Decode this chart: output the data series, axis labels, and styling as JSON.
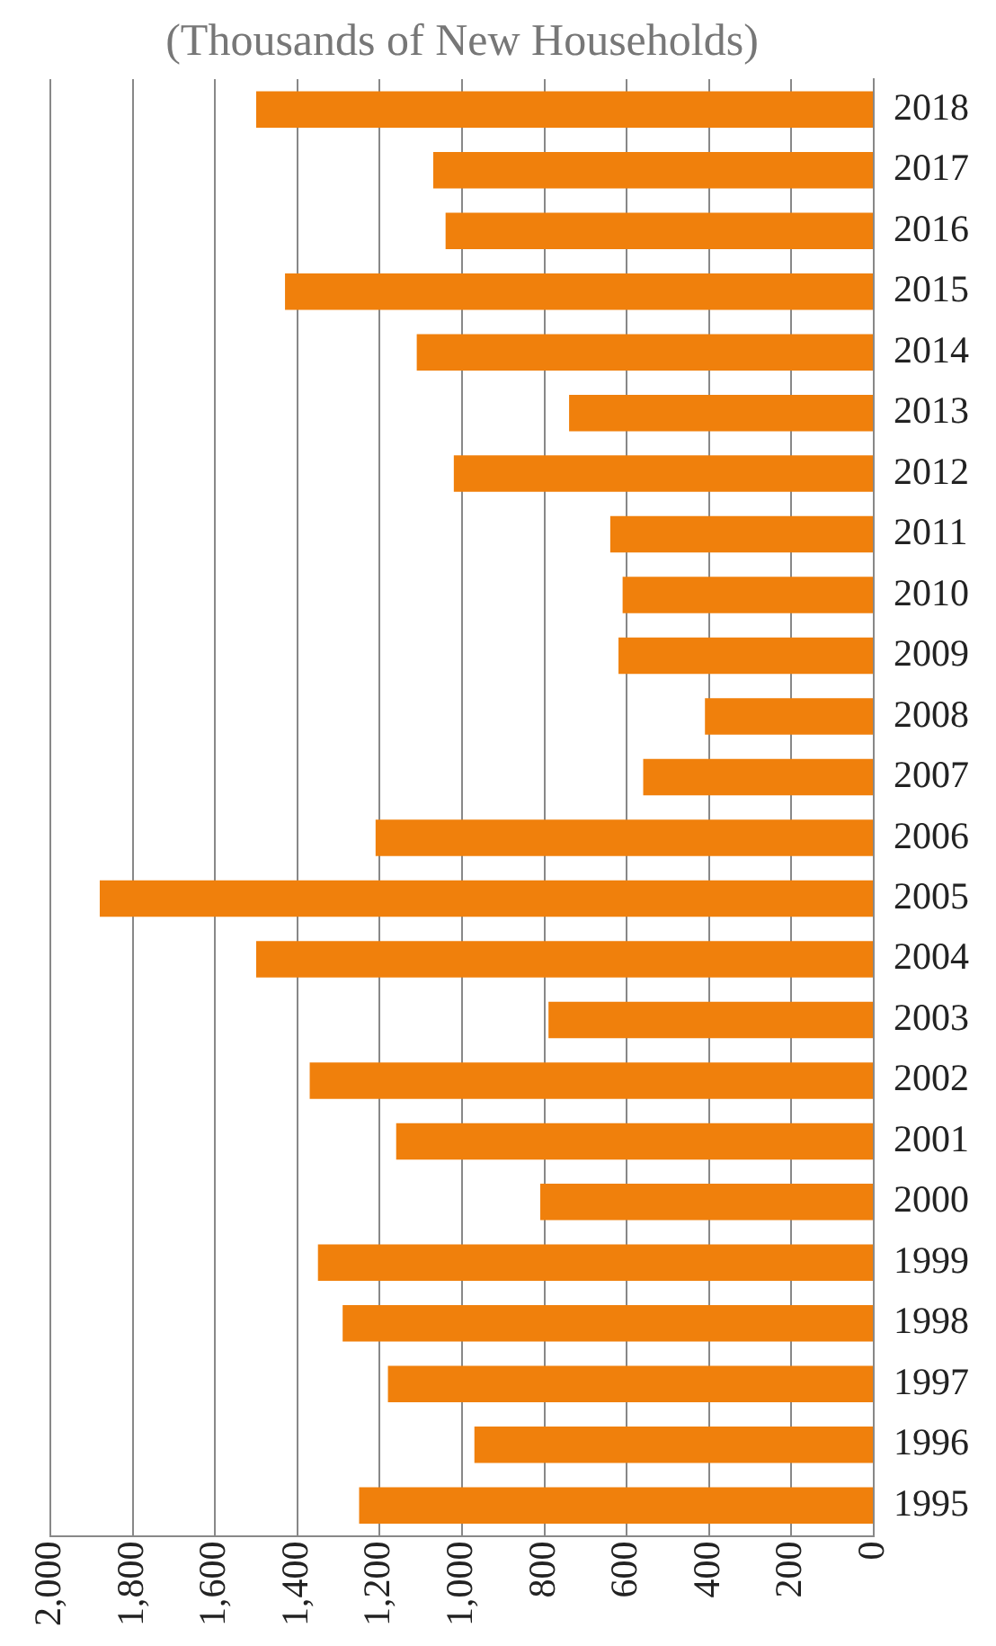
{
  "chart_data": {
    "type": "bar",
    "orientation": "horizontal",
    "xlabel": "(Thousands of New Households)",
    "categories": [
      "2018",
      "2017",
      "2016",
      "2015",
      "2014",
      "2013",
      "2012",
      "2011",
      "2010",
      "2009",
      "2008",
      "2007",
      "2006",
      "2005",
      "2004",
      "2003",
      "2002",
      "2001",
      "2000",
      "1999",
      "1998",
      "1997",
      "1996",
      "1995"
    ],
    "values": [
      1500,
      1070,
      1040,
      1430,
      1110,
      740,
      1020,
      640,
      610,
      620,
      410,
      560,
      1210,
      1880,
      1500,
      790,
      1370,
      1160,
      810,
      1350,
      1290,
      1180,
      970,
      1250
    ],
    "color": "#f0800c",
    "xlim": [
      2000,
      0
    ],
    "xticks": [
      {
        "value": 2000,
        "label": "2,000"
      },
      {
        "value": 1800,
        "label": "1,800"
      },
      {
        "value": 1600,
        "label": "1,600"
      },
      {
        "value": 1400,
        "label": "1,400"
      },
      {
        "value": 1200,
        "label": "1,200"
      },
      {
        "value": 1000,
        "label": "1,000"
      },
      800,
      600,
      400,
      200,
      0
    ],
    "grid": "x",
    "legend": false
  }
}
